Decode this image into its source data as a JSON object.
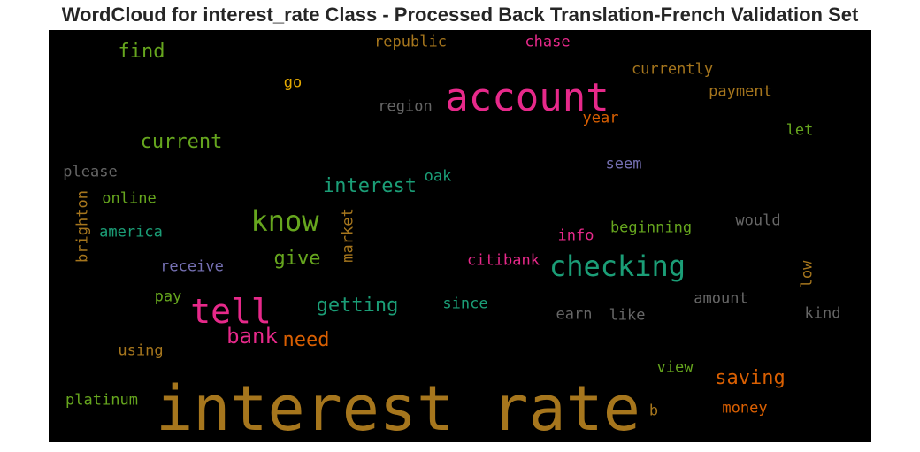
{
  "title": "WordCloud for interest_rate Class - Processed Back Translation-French Validation Set",
  "chart_data": {
    "type": "wordcloud",
    "title": "WordCloud for interest_rate Class - Processed Back Translation-French Validation Set",
    "words": [
      {
        "text": "interest rate",
        "color": "#a6761d"
      },
      {
        "text": "account",
        "color": "#e7298a"
      },
      {
        "text": "checking",
        "color": "#1b9e77"
      },
      {
        "text": "tell",
        "color": "#e7298a"
      },
      {
        "text": "know",
        "color": "#66a61e"
      },
      {
        "text": "bank",
        "color": "#e7298a"
      },
      {
        "text": "current",
        "color": "#66a61e"
      },
      {
        "text": "find",
        "color": "#66a61e"
      },
      {
        "text": "interest",
        "color": "#1b9e77"
      },
      {
        "text": "getting",
        "color": "#1b9e77"
      },
      {
        "text": "saving",
        "color": "#d95f02"
      },
      {
        "text": "need",
        "color": "#d95f02"
      },
      {
        "text": "give",
        "color": "#66a61e"
      },
      {
        "text": "republic",
        "color": "#a6761d"
      },
      {
        "text": "chase",
        "color": "#e7298a"
      },
      {
        "text": "currently",
        "color": "#a6761d"
      },
      {
        "text": "go",
        "color": "#e6ab02"
      },
      {
        "text": "payment",
        "color": "#a6761d"
      },
      {
        "text": "region",
        "color": "#666666"
      },
      {
        "text": "year",
        "color": "#d95f02"
      },
      {
        "text": "let",
        "color": "#66a61e"
      },
      {
        "text": "please",
        "color": "#666666"
      },
      {
        "text": "seem",
        "color": "#7570b3"
      },
      {
        "text": "oak",
        "color": "#1b9e77"
      },
      {
        "text": "online",
        "color": "#66a61e"
      },
      {
        "text": "brighton",
        "color": "#a6761d"
      },
      {
        "text": "market",
        "color": "#a6761d"
      },
      {
        "text": "would",
        "color": "#666666"
      },
      {
        "text": "beginning",
        "color": "#66a61e"
      },
      {
        "text": "america",
        "color": "#1b9e77"
      },
      {
        "text": "info",
        "color": "#e7298a"
      },
      {
        "text": "receive",
        "color": "#7570b3"
      },
      {
        "text": "citibank",
        "color": "#e7298a"
      },
      {
        "text": "low",
        "color": "#a6761d"
      },
      {
        "text": "pay",
        "color": "#66a61e"
      },
      {
        "text": "since",
        "color": "#1b9e77"
      },
      {
        "text": "amount",
        "color": "#666666"
      },
      {
        "text": "earn",
        "color": "#666666"
      },
      {
        "text": "like",
        "color": "#666666"
      },
      {
        "text": "kind",
        "color": "#666666"
      },
      {
        "text": "using",
        "color": "#a6761d"
      },
      {
        "text": "view",
        "color": "#66a61e"
      },
      {
        "text": "platinum",
        "color": "#66a61e"
      },
      {
        "text": "b",
        "color": "#a6761d"
      },
      {
        "text": "money",
        "color": "#d95f02"
      }
    ]
  }
}
